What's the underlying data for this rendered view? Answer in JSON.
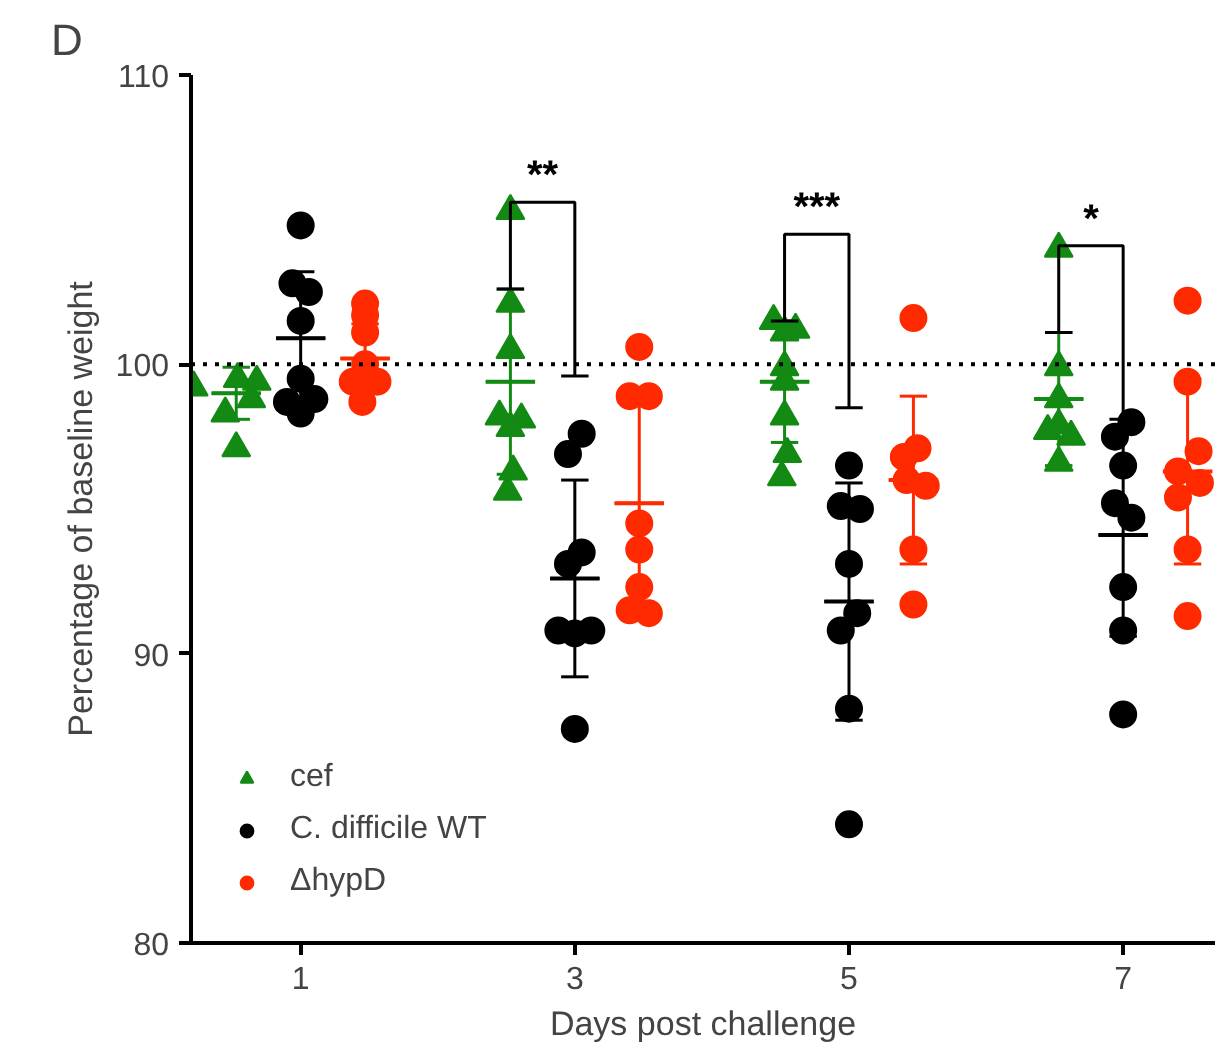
{
  "chart_data": {
    "type": "scatter",
    "title": "D",
    "xlabel": "Days post challenge",
    "ylabel": "Percentage of baseline weight",
    "xlim": [
      0.2,
      7.67
    ],
    "xticks": [
      1,
      3,
      5,
      7
    ],
    "ylim": [
      80,
      110
    ],
    "yticks": [
      80,
      90,
      100,
      110
    ],
    "grid": false,
    "legend": "bottom left",
    "ref_lines": [
      {
        "axis": "y",
        "value": 100,
        "color": "#000000",
        "line_style": "dotted"
      }
    ],
    "annotations": [
      "**",
      "***",
      "*"
    ],
    "series": [
      {
        "name": "cef",
        "color": "#138a13",
        "marker": "triangle",
        "x": [
          0.54,
          0.68,
          0.22,
          0.64,
          0.45,
          0.53,
          2.53,
          2.53,
          2.53,
          2.45,
          2.61,
          2.53,
          2.55,
          2.51,
          4.45,
          4.61,
          4.53,
          4.53,
          4.53,
          4.53,
          4.55,
          4.51,
          6.53,
          6.53,
          6.53,
          6.53,
          6.45,
          6.62,
          6.53
        ],
        "values": [
          99.5,
          99.4,
          99.2,
          98.8,
          98.3,
          97.1,
          105.3,
          102.1,
          100.5,
          98.2,
          98.1,
          97.8,
          96.3,
          95.6,
          101.5,
          101.2,
          101.1,
          99.9,
          99.4,
          98.2,
          96.9,
          96.1,
          104.0,
          99.9,
          98.8,
          97.9,
          97.7,
          97.5,
          96.6
        ]
      },
      {
        "name": "C. difficile WT",
        "color": "#000000",
        "marker": "circle",
        "x": [
          1.0,
          0.94,
          1.06,
          1.0,
          1.0,
          1.1,
          0.9,
          1.0,
          3.05,
          2.95,
          3.05,
          2.95,
          2.88,
          3.12,
          3.0,
          3.0,
          5.0,
          4.94,
          5.08,
          5.0,
          5.06,
          4.94,
          5.0,
          5.0,
          7.06,
          6.94,
          7.0,
          6.94,
          7.06,
          7.0,
          7.0,
          7.0
        ],
        "values": [
          104.8,
          102.8,
          102.5,
          101.5,
          99.5,
          98.8,
          98.7,
          98.3,
          97.6,
          96.9,
          93.5,
          93.1,
          90.8,
          90.8,
          90.7,
          87.4,
          96.5,
          95.1,
          95.0,
          93.1,
          91.4,
          90.8,
          88.1,
          84.1,
          98.0,
          97.5,
          96.5,
          95.2,
          94.7,
          92.3,
          90.8,
          87.9
        ]
      },
      {
        "name": "ΔhypD",
        "color": "#ff2a00",
        "marker": "circle",
        "x": [
          1.47,
          1.47,
          1.47,
          1.47,
          1.38,
          1.56,
          1.45,
          3.47,
          3.4,
          3.54,
          3.47,
          3.47,
          3.47,
          3.4,
          3.54,
          5.47,
          5.5,
          5.4,
          5.42,
          5.56,
          5.47,
          5.47,
          7.47,
          7.47,
          7.55,
          7.4,
          7.56,
          7.4,
          7.47,
          7.47
        ],
        "values": [
          102.1,
          101.7,
          101.1,
          100.0,
          99.4,
          99.4,
          98.7,
          100.6,
          98.9,
          98.9,
          94.5,
          93.6,
          92.3,
          91.5,
          91.4,
          101.6,
          97.1,
          96.8,
          96.0,
          95.8,
          93.6,
          91.7,
          102.2,
          99.4,
          97.0,
          96.3,
          95.9,
          95.4,
          93.6,
          91.3
        ]
      },
      {
        "type": "box",
        "color": "#138a13",
        "x": [
          0.53,
          2.53,
          4.53,
          6.53
        ],
        "boxes": [
          {
            "low": 98.1,
            "q1": 99.0,
            "median": 99.0,
            "q3": 99.0,
            "high": 99.9
          },
          {
            "low": 96.2,
            "q1": 99.4,
            "median": 99.4,
            "q3": 99.4,
            "high": 102.6
          },
          {
            "low": 97.3,
            "q1": 99.4,
            "median": 99.4,
            "q3": 99.4,
            "high": 101.5
          },
          {
            "low": 96.5,
            "q1": 98.8,
            "median": 98.8,
            "q3": 98.8,
            "high": 101.1
          }
        ]
      },
      {
        "type": "box",
        "color": "#000000",
        "x": [
          1,
          3,
          5,
          7
        ],
        "boxes": [
          {
            "low": 98.6,
            "q1": 100.9,
            "median": 100.9,
            "q3": 100.9,
            "high": 103.2
          },
          {
            "low": 89.2,
            "q1": 92.6,
            "median": 92.6,
            "q3": 92.6,
            "high": 96.0
          },
          {
            "low": 87.7,
            "q1": 91.8,
            "median": 91.8,
            "q3": 91.8,
            "high": 95.9
          },
          {
            "low": 90.6,
            "q1": 94.1,
            "median": 94.1,
            "q3": 94.1,
            "high": 97.6
          }
        ]
      },
      {
        "type": "box",
        "color": "#ff2a00",
        "x": [
          1.47,
          3.47,
          5.47,
          7.47
        ],
        "boxes": [
          {
            "low": 99.0,
            "q1": 100.2,
            "median": 100.2,
            "q3": 100.2,
            "high": 101.4
          },
          {
            "low": 91.8,
            "q1": 95.2,
            "median": 95.2,
            "q3": 95.2,
            "high": 98.6
          },
          {
            "low": 93.1,
            "q1": 96.0,
            "median": 96.0,
            "q3": 96.0,
            "high": 98.9
          },
          {
            "low": 93.1,
            "q1": 96.3,
            "median": 96.3,
            "q3": 96.3,
            "high": 99.5
          }
        ]
      }
    ]
  }
}
